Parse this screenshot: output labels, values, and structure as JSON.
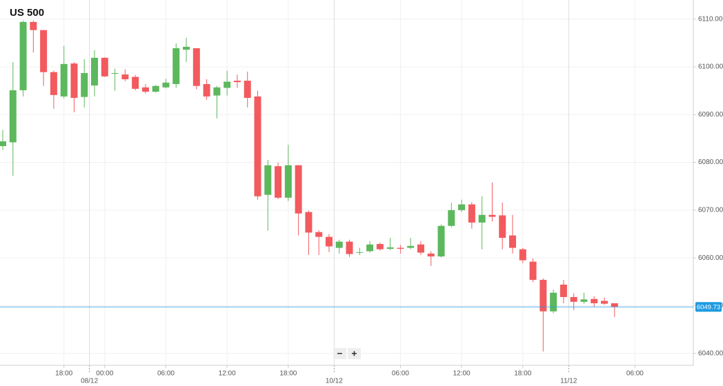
{
  "chart_data": {
    "type": "candlestick",
    "title": "US 500",
    "categories": [
      null,
      null,
      null,
      null,
      null,
      null,
      "18:00",
      null,
      null,
      null,
      "00:00",
      null,
      null,
      null,
      null,
      null,
      "06:00",
      null,
      null,
      null,
      null,
      null,
      "12:00",
      null,
      null,
      null,
      null,
      null,
      "18:00",
      null,
      null,
      null,
      null,
      null,
      null,
      null,
      null,
      null,
      null,
      "06:00",
      null,
      null,
      null,
      null,
      null,
      "12:00",
      null,
      null,
      null,
      null,
      null,
      "18:00",
      null,
      null,
      null,
      null,
      null,
      null,
      null,
      null,
      null,
      null,
      "06:00"
    ],
    "dates": [
      null,
      null,
      null,
      null,
      null,
      null,
      null,
      null,
      "08/12",
      null,
      null,
      null,
      null,
      null,
      null,
      null,
      null,
      null,
      null,
      null,
      null,
      null,
      null,
      null,
      null,
      null,
      null,
      null,
      null,
      null,
      null,
      null,
      "10/12",
      null,
      null,
      null,
      null,
      null,
      null,
      null,
      null,
      null,
      null,
      null,
      null,
      null,
      null,
      null,
      null,
      null,
      null,
      null,
      null,
      null,
      null,
      "11/12",
      null,
      null,
      null,
      null,
      null,
      null,
      null
    ],
    "open": [
      6083.4,
      6084.2,
      6095.1,
      6109.4,
      6107.7,
      6098.9,
      6093.8,
      6100.7,
      6093.7,
      6096.1,
      6101.9,
      6098.6,
      6098.4,
      6097.9,
      6095.7,
      6094.8,
      6095.7,
      6096.4,
      6103.6,
      6103.9,
      6096.4,
      6094.0,
      6095.6,
      6097.1,
      6097.1,
      6093.8,
      6073.2,
      6079.2,
      6072.6,
      6079.4,
      6069.6,
      6065.4,
      6064.4,
      6062.1,
      6063.4,
      6061.1,
      6061.4,
      6062.9,
      6061.9,
      6062.1,
      6062.1,
      6062.8,
      6060.9,
      6060.3,
      6066.7,
      6070.0,
      6071.2,
      6067.4,
      6069.0,
      6068.9,
      6064.7,
      6061.8,
      6059.2,
      6055.4,
      6048.8,
      6054.4,
      6051.8,
      6050.8,
      6051.4,
      6051.0,
      6050.5,
      null,
      null
    ],
    "high": [
      6086.8,
      6101.0,
      6109.7,
      6109.7,
      6107.7,
      6099.2,
      6104.4,
      6101.0,
      6101.6,
      6103.5,
      6102.0,
      6099.6,
      6099.5,
      6098.3,
      6096.4,
      6096.2,
      6097.5,
      6104.9,
      6106.1,
      6103.9,
      6097.4,
      6096.0,
      6099.2,
      6098.4,
      6099.0,
      6095.0,
      6080.5,
      6080.0,
      6083.7,
      6079.4,
      6069.9,
      6065.8,
      6065.0,
      6063.8,
      6063.8,
      6062.1,
      6063.5,
      6063.2,
      6064.2,
      6062.7,
      6064.2,
      6063.5,
      6061.4,
      6067.0,
      6071.5,
      6072.2,
      6071.7,
      6072.9,
      6075.8,
      6071.6,
      6069.0,
      6062.1,
      6059.9,
      6055.7,
      6053.4,
      6055.4,
      6052.6,
      6052.7,
      6052.0,
      6051.7,
      6050.5,
      null,
      null
    ],
    "low": [
      6082.6,
      6077.2,
      6093.8,
      6103.0,
      6096.0,
      6091.2,
      6093.4,
      6090.5,
      6091.5,
      6093.8,
      6097.9,
      6095.0,
      6097.0,
      6095.1,
      6094.4,
      6094.6,
      6095.5,
      6095.6,
      6101.0,
      6095.3,
      6093.1,
      6089.2,
      6094.0,
      6095.6,
      6091.5,
      6072.2,
      6065.7,
      6072.3,
      6071.9,
      6064.7,
      6060.6,
      6060.6,
      6061.2,
      6060.9,
      6060.2,
      6060.6,
      6061.1,
      6061.5,
      6061.6,
      6060.9,
      6061.8,
      6060.6,
      6058.3,
      6060.1,
      6066.4,
      6069.6,
      6066.1,
      6061.8,
      6067.6,
      6061.8,
      6060.9,
      6058.9,
      6054.9,
      6040.4,
      6048.4,
      6050.5,
      6049.1,
      6050.4,
      6049.8,
      6050.2,
      6047.6,
      null,
      null
    ],
    "close": [
      6084.4,
      6095.1,
      6109.4,
      6107.7,
      6098.9,
      6094.1,
      6100.6,
      6093.5,
      6098.7,
      6101.9,
      6098.0,
      6098.7,
      6097.4,
      6095.4,
      6094.8,
      6096.0,
      6096.7,
      6103.9,
      6104.2,
      6096.0,
      6093.8,
      6095.7,
      6096.9,
      6096.8,
      6093.5,
      6072.9,
      6079.4,
      6072.6,
      6079.4,
      6069.3,
      6065.3,
      6064.4,
      6062.4,
      6063.4,
      6060.8,
      6061.2,
      6062.8,
      6061.8,
      6062.2,
      6061.9,
      6062.5,
      6061.1,
      6060.3,
      6066.7,
      6070.0,
      6071.2,
      6067.4,
      6069.0,
      6068.6,
      6064.2,
      6062.1,
      6059.5,
      6055.4,
      6048.8,
      6052.7,
      6051.8,
      6050.8,
      6051.3,
      6050.5,
      6050.4,
      6049.7,
      null,
      null
    ],
    "up_color": "#5cb85c",
    "down_color": "#f25a5e",
    "last_price": 6049.73,
    "last_price_color": "#1e9be0",
    "ylim": [
      6037.5,
      6114
    ],
    "yticks": [
      {
        "value": 6040,
        "label": "6040.00"
      },
      {
        "value": 6050,
        "label": "6050.00"
      },
      {
        "value": 6060,
        "label": "6060.00"
      },
      {
        "value": 6070,
        "label": "6070.00"
      },
      {
        "value": 6080,
        "label": "6080.00"
      },
      {
        "value": 6090,
        "label": "6090.00"
      },
      {
        "value": 6100,
        "label": "6100.00"
      },
      {
        "value": 6110,
        "label": "6110.00"
      }
    ],
    "grid": true,
    "controls": [
      "−",
      "+"
    ]
  }
}
